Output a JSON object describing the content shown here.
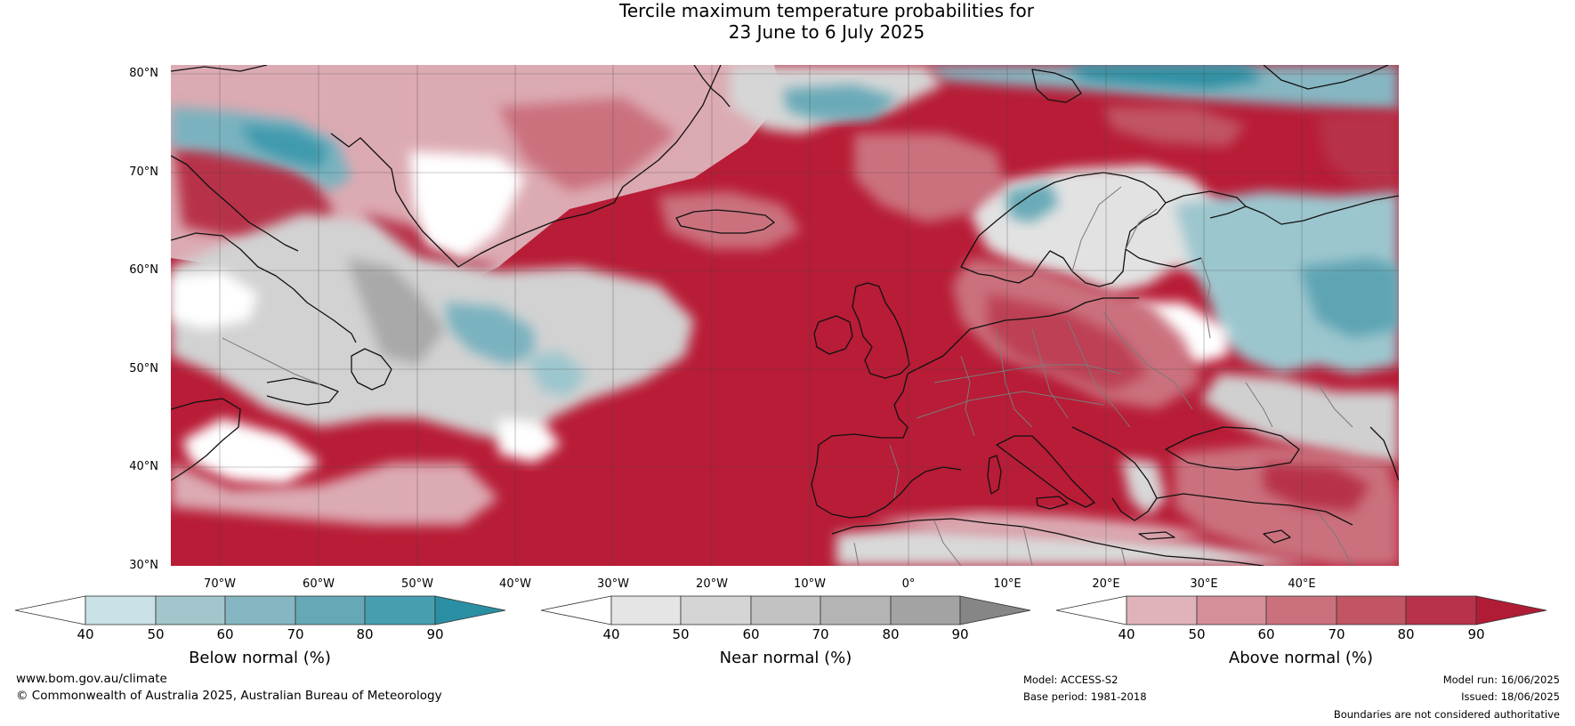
{
  "title": {
    "line1": "Tercile maximum temperature probabilities for",
    "line2": "23 June to 6 July 2025"
  },
  "map": {
    "lat_labels": [
      "80°N",
      "70°N",
      "60°N",
      "50°N",
      "40°N",
      "30°N"
    ],
    "lon_labels": [
      "70°W",
      "60°W",
      "50°W",
      "40°W",
      "30°W",
      "20°W",
      "10°W",
      "0°",
      "10°E",
      "20°E",
      "30°E",
      "40°E"
    ],
    "colors": {
      "ocean_warm": "#b81c36",
      "land_warm": "#c42a42",
      "below_normal": "#4aa3b5",
      "near_normal": "#b4b4b4",
      "white": "#ffffff",
      "coast": "#111111",
      "borders": "#7a7a7a",
      "grid": "#555555"
    }
  },
  "colorbars": [
    {
      "label": "Below normal (%)",
      "ticks": [
        "40",
        "50",
        "60",
        "70",
        "80",
        "90"
      ],
      "colors": [
        "#c9e1e7",
        "#a3c5cc",
        "#86b6c1",
        "#66a9b6",
        "#479eb0"
      ],
      "extend_colors": [
        "#ffffff",
        "#2b8fa3"
      ]
    },
    {
      "label": "Near normal (%)",
      "ticks": [
        "40",
        "50",
        "60",
        "70",
        "80",
        "90"
      ],
      "colors": [
        "#e5e5e5",
        "#d5d5d5",
        "#c2c2c2",
        "#b4b4b4",
        "#a3a3a3"
      ],
      "extend_colors": [
        "#ffffff",
        "#868686"
      ]
    },
    {
      "label": "Above normal (%)",
      "ticks": [
        "40",
        "50",
        "60",
        "70",
        "80",
        "90"
      ],
      "colors": [
        "#e0b3ba",
        "#d68f99",
        "#cb717e",
        "#c15564",
        "#b7324a"
      ],
      "extend_colors": [
        "#ffffff",
        "#b01c36"
      ]
    }
  ],
  "footer": {
    "website": "www.bom.gov.au/climate",
    "copyright": "© Commonwealth of Australia 2025, Australian Bureau of Meteorology",
    "model": "Model: ACCESS-S2",
    "base_period": "Base period: 1981-2018",
    "model_run": "Model run: 16/06/2025",
    "issued": "Issued: 18/06/2025",
    "disclaimer": "Boundaries are not considered authoritative"
  }
}
